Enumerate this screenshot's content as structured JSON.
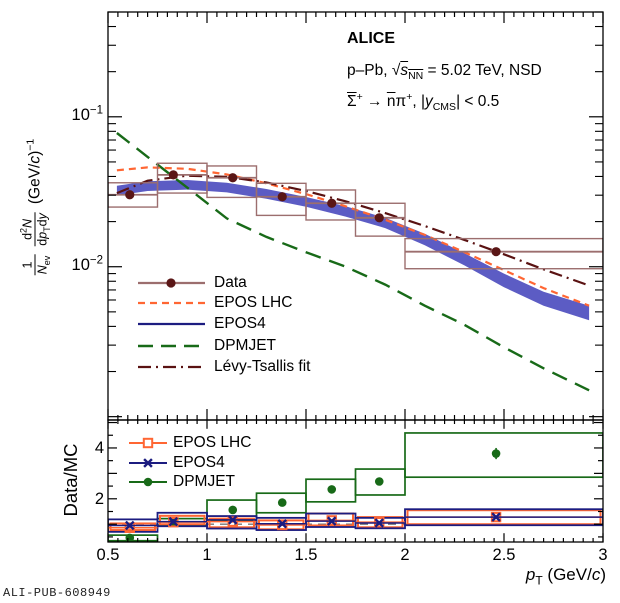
{
  "colors": {
    "data": "#5a1616",
    "data_light": "#9c6e6e",
    "epos_lhc": "#ff6633",
    "epos4": "#1c1c80",
    "epos4_band": "#5c5cc4",
    "dpmjet": "#186a18",
    "levy": "#5a1212",
    "unity": "#777777",
    "frame": "#000000"
  },
  "header": {
    "experiment": "ALICE",
    "line2": {
      "prefix": "p–Pb, ",
      "radical": "√",
      "s": "s",
      "s_sub": "NN",
      "suffix": " = 5.02 TeV, NSD"
    },
    "line3": {
      "sigma": "Σ",
      "sigma_sup": "+",
      "arrow": " → ",
      "nbar": "n",
      "pi": "π",
      "pi_sup": "+",
      "mid": ", |",
      "y": "y",
      "y_sub": "CMS",
      "end": "| < 0.5"
    }
  },
  "ylabel_spectrum": {
    "frac1_num": "1",
    "frac1_den_N": "N",
    "frac1_den_sub": "ev",
    "frac2_num_d": "d",
    "frac2_num_exp": "2",
    "frac2_num_N": "N",
    "frac2_den_d1": "d",
    "frac2_den_p": "p",
    "frac2_den_sub": "T",
    "frac2_den_d2": "d",
    "frac2_den_y": "y",
    "units_open": "(GeV/",
    "units_c": "c",
    "units_close": ")",
    "units_exp": "−1"
  },
  "ylabel_ratio": "Data/MC",
  "xlabel": {
    "p": "p",
    "sub": "T",
    "rest": " (GeV/",
    "c": "c",
    "close": ")"
  },
  "axes": {
    "x_ticks": [
      {
        "v": 0.5,
        "label": "0.5"
      },
      {
        "v": 1,
        "label": "1"
      },
      {
        "v": 1.5,
        "label": "1.5"
      },
      {
        "v": 2,
        "label": "2"
      },
      {
        "v": 2.5,
        "label": "2.5"
      },
      {
        "v": 3,
        "label": "3"
      }
    ],
    "spec_y_ticks": [
      {
        "v": 0.1,
        "base": "10",
        "exp": "−1"
      },
      {
        "v": 0.01,
        "base": "10",
        "exp": "−2"
      }
    ],
    "ratio_y_ticks": [
      {
        "v": 2,
        "label": "2"
      },
      {
        "v": 4,
        "label": "4"
      }
    ]
  },
  "watermark": "ALI-PUB-608949",
  "chart_data": [
    {
      "type": "line",
      "panel": "spectrum",
      "ylabel": "1/Nev d2N/(dpT dy) (GeV/c)^-1",
      "xlabel": "pT (GeV/c)",
      "yscale": "log",
      "xlim": [
        0.5,
        3.0
      ],
      "ylim": [
        0.00095,
        0.5
      ],
      "bin_edges": [
        0.5,
        0.75,
        1.0,
        1.25,
        1.5,
        1.75,
        2.0,
        3.0
      ],
      "data": {
        "label": "Data",
        "x": [
          0.61,
          0.83,
          1.13,
          1.38,
          1.63,
          1.87,
          2.46
        ],
        "y": [
          0.0302,
          0.041,
          0.0392,
          0.0293,
          0.0265,
          0.0212,
          0.0126
        ],
        "sys_lo": [
          0.025,
          0.031,
          0.029,
          0.022,
          0.0205,
          0.016,
          0.0097
        ],
        "sys_hi": [
          0.0363,
          0.049,
          0.047,
          0.036,
          0.0325,
          0.0265,
          0.0154
        ]
      },
      "series": [
        {
          "name": "EPOS LHC",
          "style": "dash",
          "x": [
            0.545,
            0.7,
            0.9,
            1.1,
            1.3,
            1.5,
            1.7,
            1.9,
            2.1,
            2.3,
            2.5,
            2.7,
            2.93
          ],
          "y": [
            0.044,
            0.046,
            0.045,
            0.0413,
            0.036,
            0.0305,
            0.0253,
            0.0206,
            0.0163,
            0.0125,
            0.0095,
            0.0072,
            0.0055
          ]
        },
        {
          "name": "EPOS4",
          "style": "band",
          "x": [
            0.545,
            0.7,
            0.9,
            1.1,
            1.3,
            1.5,
            1.7,
            1.9,
            2.1,
            2.3,
            2.5,
            2.7,
            2.93
          ],
          "center": [
            0.0322,
            0.0345,
            0.0352,
            0.0337,
            0.0306,
            0.0271,
            0.0234,
            0.0196,
            0.0152,
            0.0112,
            0.0081,
            0.0061,
            0.0049
          ],
          "lo": [
            0.0299,
            0.032,
            0.0327,
            0.0313,
            0.0284,
            0.0251,
            0.0216,
            0.0181,
            0.0139,
            0.0102,
            0.0073,
            0.0055,
            0.0044
          ],
          "hi": [
            0.0347,
            0.0372,
            0.0379,
            0.0363,
            0.033,
            0.0292,
            0.0253,
            0.0212,
            0.0166,
            0.0123,
            0.009,
            0.0068,
            0.0055
          ]
        },
        {
          "name": "DPMJET",
          "style": "longdash",
          "x": [
            0.545,
            0.7,
            0.9,
            1.1,
            1.3,
            1.5,
            1.7,
            1.9,
            2.1,
            2.3,
            2.5,
            2.7,
            2.93
          ],
          "y": [
            0.078,
            0.054,
            0.0337,
            0.021,
            0.0158,
            0.0125,
            0.01,
            0.0076,
            0.0055,
            0.0041,
            0.0029,
            0.0021,
            0.0015
          ]
        },
        {
          "name": "Lévy-Tsallis fit",
          "style": "dashdot",
          "x": [
            0.545,
            0.7,
            0.9,
            1.1,
            1.3,
            1.5,
            1.7,
            1.9,
            2.1,
            2.3,
            2.5,
            2.7,
            2.93
          ],
          "y": [
            0.031,
            0.0375,
            0.0405,
            0.0398,
            0.0365,
            0.032,
            0.0273,
            0.0228,
            0.0187,
            0.0151,
            0.0121,
            0.0096,
            0.0075
          ]
        }
      ],
      "legend": [
        "Data",
        "EPOS LHC",
        "EPOS4",
        "DPMJET",
        "Lévy-Tsallis fit"
      ]
    },
    {
      "type": "scatter",
      "panel": "ratio",
      "ylabel": "Data/MC",
      "xlim": [
        0.5,
        3.0
      ],
      "ylim": [
        0.3,
        5.1
      ],
      "unity_line": 1,
      "bin_edges": [
        0.5,
        0.75,
        1.0,
        1.25,
        1.5,
        1.75,
        2.0,
        3.0
      ],
      "x": [
        0.61,
        0.83,
        1.13,
        1.38,
        1.63,
        1.87,
        2.46
      ],
      "series": [
        {
          "name": "EPOS LHC",
          "marker": "open-square",
          "y": [
            0.86,
            1.08,
            1.1,
            0.97,
            1.15,
            1.08,
            1.28
          ],
          "box_lo": [
            0.77,
            1.0,
            0.88,
            0.8,
            0.95,
            0.88,
            1.0
          ],
          "box_hi": [
            1.03,
            1.33,
            1.22,
            1.15,
            1.42,
            1.28,
            1.55
          ],
          "stat": [
            0.04,
            0.04,
            0.04,
            0.04,
            0.05,
            0.05,
            0.06
          ]
        },
        {
          "name": "EPOS4",
          "marker": "x-cross",
          "y": [
            0.95,
            1.1,
            1.17,
            1.02,
            1.12,
            1.05,
            1.28
          ],
          "box_lo": [
            0.7,
            0.92,
            0.83,
            0.77,
            0.89,
            0.84,
            0.96
          ],
          "box_hi": [
            1.19,
            1.45,
            1.32,
            1.25,
            1.42,
            1.25,
            1.59
          ],
          "stat": [
            0.04,
            0.04,
            0.04,
            0.04,
            0.05,
            0.05,
            0.06
          ]
        },
        {
          "name": "DPMJET",
          "marker": "filled-circle",
          "y": [
            0.46,
            1.08,
            1.56,
            1.85,
            2.37,
            2.68,
            3.78
          ],
          "box_lo": [
            0.35,
            0.96,
            1.16,
            1.45,
            1.88,
            2.15,
            2.85
          ],
          "box_hi": [
            0.57,
            1.22,
            1.95,
            2.22,
            2.77,
            3.17,
            4.59
          ],
          "stat": [
            0.06,
            0.06,
            0.1,
            0.1,
            0.12,
            0.14,
            0.22
          ]
        }
      ],
      "legend": [
        "EPOS LHC",
        "EPOS4",
        "DPMJET"
      ]
    }
  ]
}
